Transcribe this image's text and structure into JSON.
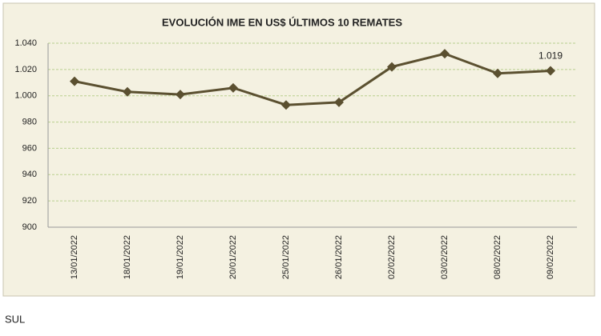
{
  "chart_data": {
    "type": "line",
    "title": "EVOLUCIÓN IME EN US$ ÚLTIMOS 10 REMATES",
    "categories": [
      "13/01/2022",
      "18/01/2022",
      "19/01/2022",
      "20/01/2022",
      "25/01/2022",
      "26/01/2022",
      "02/02/2022",
      "03/02/2022",
      "08/02/2022",
      "09/02/2022"
    ],
    "values": [
      1011,
      1003,
      1001,
      1006,
      993,
      995,
      1022,
      1032,
      1017,
      1019
    ],
    "value_labels": [
      null,
      null,
      null,
      null,
      null,
      null,
      null,
      null,
      null,
      "1.019"
    ],
    "color": "#5b5030",
    "ylim": [
      900,
      1040
    ],
    "yticks": [
      900,
      920,
      940,
      960,
      980,
      {
        "value": 1000,
        "label": "1.000"
      },
      {
        "value": 1020,
        "label": "1.020"
      },
      {
        "value": 1040,
        "label": "1.040"
      }
    ],
    "grid": true
  },
  "footer": "SUL"
}
